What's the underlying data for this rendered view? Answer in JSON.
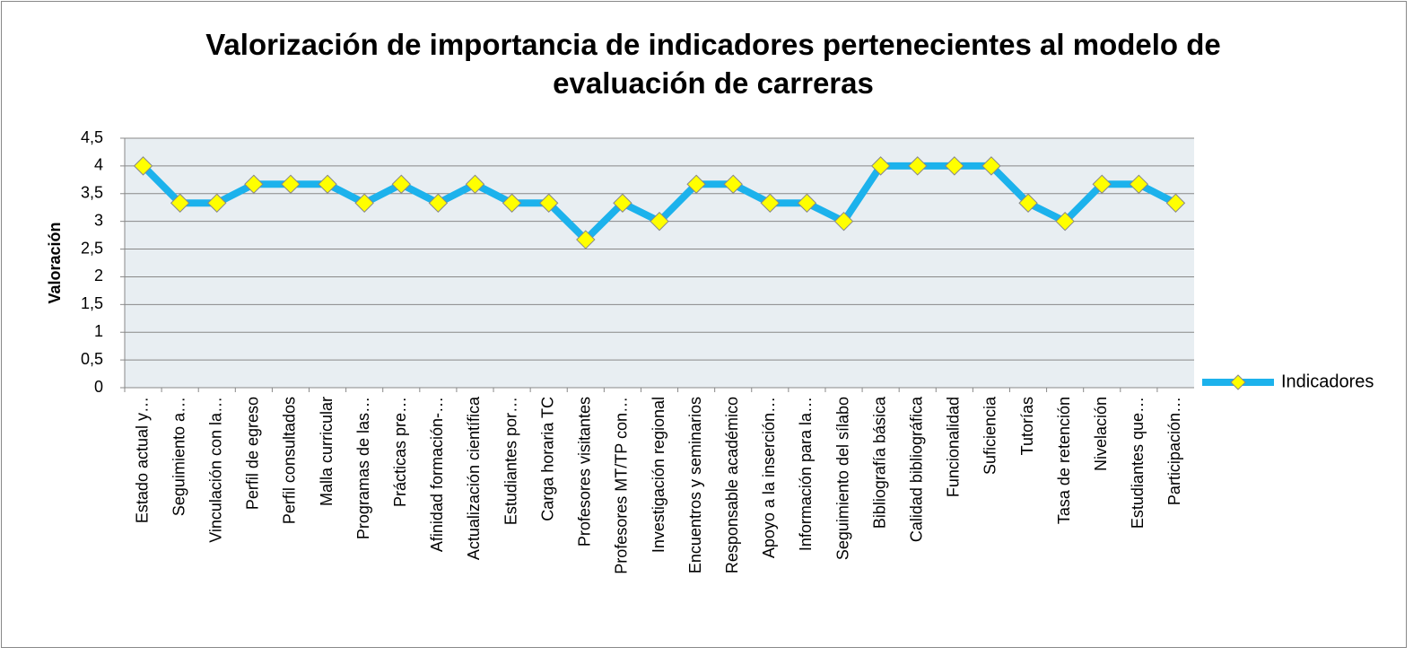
{
  "chart_data": {
    "type": "line",
    "title": "Valorización de importancia de indicadores pertenecientes al modelo de evaluación de carreras",
    "y_label": "Valoración",
    "categories": [
      "Estado actual y…",
      "Seguimiento a…",
      "Vinculación con la…",
      "Perfil de egreso",
      "Perfil consultados",
      "Malla curricular",
      "Programas de las…",
      "Prácticas pre…",
      "Afinidad formación-…",
      "Actualización científica",
      "Estudiantes por…",
      "Carga horaria TC",
      "Profesores visitantes",
      "Profesores MT/TP con…",
      "Investigación regional",
      "Encuentros y seminarios",
      "Responsable académico",
      "Apoyo a la inserción…",
      "Información para la…",
      "Seguimiento del sílabo",
      "Bibliografía básica",
      "Calidad bibliográfica",
      "Funcionalidad",
      "Suficiencia",
      "Tutorías",
      "Tasa de retención",
      "Nivelación",
      "Estudiantes que…",
      "Participación…"
    ],
    "series": [
      {
        "name": "Indicadores",
        "color": "#1cb2ec",
        "marker_color": "#ffff00",
        "values": [
          4,
          3.33,
          3.33,
          3.67,
          3.67,
          3.67,
          3.33,
          3.67,
          3.33,
          3.67,
          3.33,
          3.33,
          2.67,
          3.33,
          3,
          3.67,
          3.67,
          3.33,
          3.33,
          3,
          4,
          4,
          4,
          4,
          3.33,
          3,
          3.67,
          3.67,
          3.33
        ]
      }
    ],
    "ylim": [
      0,
      4.5
    ],
    "yticks": [
      0,
      {
        "value": 0.5,
        "label": "0,5"
      },
      1,
      {
        "value": 1.5,
        "label": "1,5"
      },
      2,
      {
        "value": 2.5,
        "label": "2,5"
      },
      3,
      {
        "value": 3.5,
        "label": "3,5"
      },
      4,
      {
        "value": 4.5,
        "label": "4,5"
      }
    ],
    "grid": true,
    "legend": "right"
  }
}
